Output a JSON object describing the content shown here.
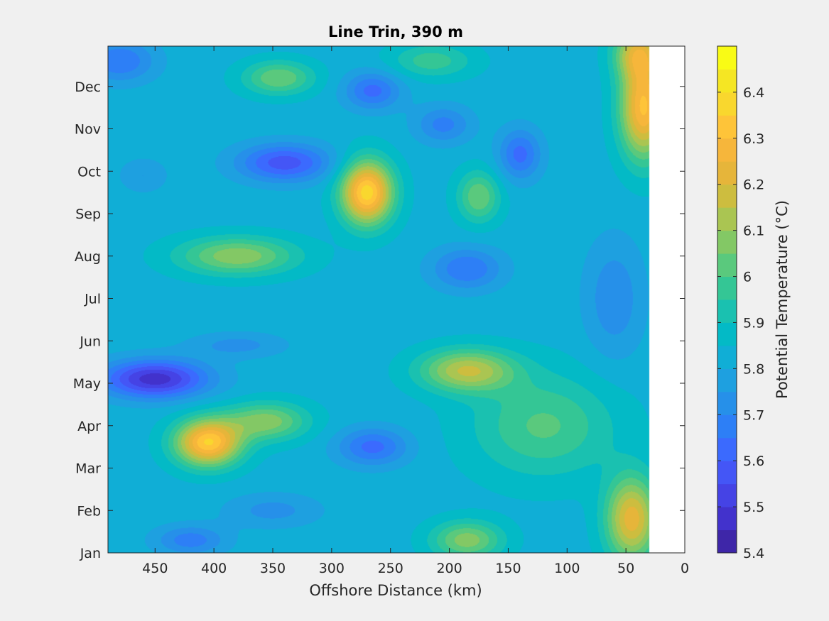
{
  "chart_data": {
    "type": "heatmap",
    "subtype": "filled-contour",
    "title": "Line Trin, 390 m",
    "xlabel": "Offshore Distance (km)",
    "ylabel": "",
    "xlim": [
      490,
      0
    ],
    "x_reversed": true,
    "x_ticks": [
      450,
      400,
      350,
      300,
      250,
      200,
      150,
      100,
      50,
      0
    ],
    "y_ticks": [
      "Jan",
      "Feb",
      "Mar",
      "Apr",
      "May",
      "Jun",
      "Jul",
      "Aug",
      "Sep",
      "Oct",
      "Nov",
      "Dec"
    ],
    "y_tick_values": [
      1,
      2,
      3,
      4,
      5,
      6,
      7,
      8,
      9,
      10,
      11,
      12
    ],
    "ylim": [
      1,
      12.95
    ],
    "data_xlim": [
      490,
      30
    ],
    "colorbar": {
      "label": "Potential Temperature (°C)",
      "range": [
        5.4,
        6.5
      ],
      "ticks": [
        5.4,
        5.5,
        5.6,
        5.7,
        5.8,
        5.9,
        6.0,
        6.1,
        6.2,
        6.3,
        6.4
      ],
      "tick_labels": [
        "5.4",
        "5.5",
        "5.6",
        "5.7",
        "5.8",
        "5.9",
        "6",
        "6.1",
        "6.2",
        "6.3",
        "6.4"
      ],
      "levels": [
        5.4,
        5.45,
        5.5,
        5.55,
        5.6,
        5.65,
        5.7,
        5.75,
        5.8,
        5.85,
        5.9,
        5.95,
        6.0,
        6.05,
        6.1,
        6.15,
        6.2,
        6.25,
        6.3,
        6.35,
        6.4,
        6.45,
        6.5
      ],
      "colors": [
        "#3e26a8",
        "#4232cc",
        "#4543e5",
        "#4456f6",
        "#3b6afe",
        "#2d7ff6",
        "#2690e9",
        "#1ea0e0",
        "#10aed6",
        "#03bac6",
        "#1ac1b0",
        "#34c695",
        "#5ac97d",
        "#83c865",
        "#aac552",
        "#cdbd3f",
        "#e6b53a",
        "#f6b63b",
        "#fec439",
        "#f9d72e",
        "#f5e623",
        "#f9fb15"
      ]
    },
    "field": {
      "base": 5.83,
      "features": [
        {
          "x": 450,
          "y": 5.1,
          "amp": -0.36,
          "sx": 45,
          "sy": 0.45
        },
        {
          "x": 380,
          "y": 5.9,
          "amp": -0.1,
          "sx": 40,
          "sy": 0.3
        },
        {
          "x": 405,
          "y": 3.6,
          "amp": 0.52,
          "sx": 28,
          "sy": 0.55
        },
        {
          "x": 355,
          "y": 4.1,
          "amp": 0.25,
          "sx": 35,
          "sy": 0.45
        },
        {
          "x": 380,
          "y": 8.0,
          "amp": 0.26,
          "sx": 50,
          "sy": 0.45
        },
        {
          "x": 340,
          "y": 10.2,
          "amp": -0.26,
          "sx": 40,
          "sy": 0.45
        },
        {
          "x": 270,
          "y": 9.5,
          "amp": 0.55,
          "sx": 22,
          "sy": 0.75
        },
        {
          "x": 265,
          "y": 11.9,
          "amp": -0.2,
          "sx": 24,
          "sy": 0.45
        },
        {
          "x": 265,
          "y": 3.5,
          "amp": -0.2,
          "sx": 30,
          "sy": 0.45
        },
        {
          "x": 185,
          "y": 5.3,
          "amp": 0.32,
          "sx": 40,
          "sy": 0.5
        },
        {
          "x": 185,
          "y": 1.3,
          "amp": 0.25,
          "sx": 30,
          "sy": 0.45
        },
        {
          "x": 175,
          "y": 9.4,
          "amp": 0.22,
          "sx": 18,
          "sy": 0.6
        },
        {
          "x": 205,
          "y": 11.1,
          "amp": -0.15,
          "sx": 24,
          "sy": 0.45
        },
        {
          "x": 140,
          "y": 10.4,
          "amp": -0.2,
          "sx": 18,
          "sy": 0.6
        },
        {
          "x": 185,
          "y": 7.7,
          "amp": -0.18,
          "sx": 30,
          "sy": 0.5
        },
        {
          "x": 345,
          "y": 12.2,
          "amp": 0.22,
          "sx": 30,
          "sy": 0.4
        },
        {
          "x": 480,
          "y": 12.6,
          "amp": -0.18,
          "sx": 30,
          "sy": 0.5
        },
        {
          "x": 215,
          "y": 12.6,
          "amp": 0.15,
          "sx": 35,
          "sy": 0.4
        },
        {
          "x": 420,
          "y": 1.3,
          "amp": -0.16,
          "sx": 30,
          "sy": 0.35
        },
        {
          "x": 350,
          "y": 2.0,
          "amp": -0.1,
          "sx": 40,
          "sy": 0.4
        },
        {
          "x": 460,
          "y": 9.9,
          "amp": -0.08,
          "sx": 20,
          "sy": 0.4
        },
        {
          "x": 120,
          "y": 4.0,
          "amp": 0.18,
          "sx": 60,
          "sy": 1.2
        },
        {
          "x": 60,
          "y": 7.0,
          "amp": -0.12,
          "sx": 25,
          "sy": 1.4
        },
        {
          "x": 35,
          "y": 11.5,
          "amp": 0.48,
          "sx": 20,
          "sy": 1.2
        },
        {
          "x": 45,
          "y": 1.8,
          "amp": 0.4,
          "sx": 22,
          "sy": 1.0
        },
        {
          "x": 40,
          "y": 12.8,
          "amp": 0.3,
          "sx": 20,
          "sy": 0.6
        }
      ]
    }
  }
}
